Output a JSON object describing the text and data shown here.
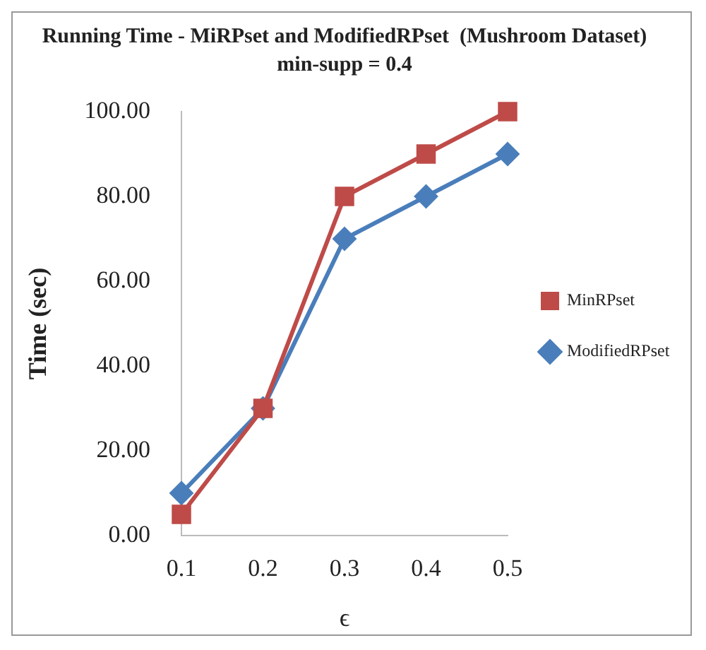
{
  "chart_data": {
    "type": "line",
    "title": "Running Time - MiRPset and ModifiedRPset  (Mushroom Dataset)",
    "subtitle": "min-supp = 0.4",
    "xlabel": "ϵ",
    "ylabel": "Time (sec)",
    "categories": [
      "0.1",
      "0.2",
      "0.3",
      "0.4",
      "0.5"
    ],
    "series": [
      {
        "name": "ModifiedRPset",
        "color": "#4a7ebb",
        "marker": "diamond",
        "values": [
          10,
          30,
          70,
          80,
          90
        ]
      },
      {
        "name": "MinRPset",
        "color": "#be4b48",
        "marker": "square",
        "values": [
          5,
          30,
          80,
          90,
          100
        ]
      }
    ],
    "ylim": [
      0,
      100
    ],
    "yticks": [
      {
        "value": 0,
        "label": "0.00"
      },
      {
        "value": 20,
        "label": "20.00"
      },
      {
        "value": 40,
        "label": "40.00"
      },
      {
        "value": 60,
        "label": "60.00"
      },
      {
        "value": 80,
        "label": "80.00"
      },
      {
        "value": 100,
        "label": "100.00"
      }
    ],
    "grid": false,
    "legend": "right"
  }
}
